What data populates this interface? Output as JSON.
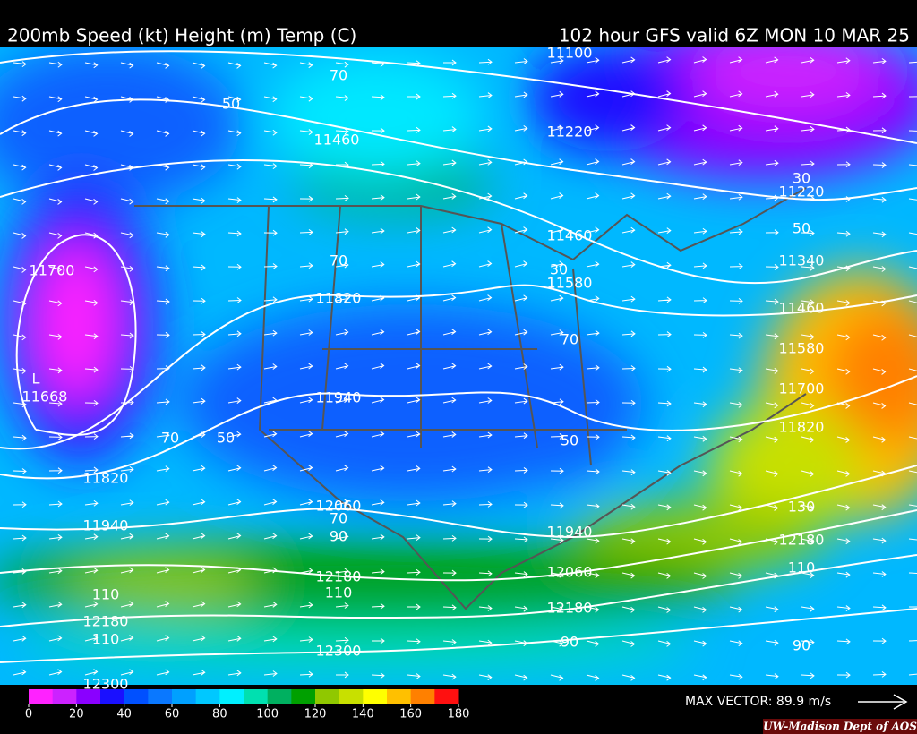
{
  "header": {
    "title_left": "200mb Speed (kt) Height (m) Temp (C)",
    "title_right": "102 hour GFS valid 6Z MON 10 MAR 25"
  },
  "low_marker": "L",
  "contour_labels": [
    11100,
    11460,
    11220,
    11220,
    11460,
    11340,
    11580,
    11460,
    11700,
    11820,
    11580,
    11700,
    11668,
    11940,
    11820,
    11820,
    12060,
    11940,
    11940,
    12180,
    12060,
    12180,
    12180,
    12180,
    12300,
    12300,
    50,
    70,
    70,
    70,
    30,
    50,
    30,
    50,
    70,
    50,
    70,
    90,
    110,
    110,
    110,
    90,
    130,
    110,
    90
  ],
  "colorbar": {
    "ticks": [
      0,
      20,
      40,
      60,
      80,
      100,
      120,
      140,
      160,
      180
    ],
    "colors": [
      "#ff22ff",
      "#cc22ff",
      "#8a00ff",
      "#1a10ff",
      "#0050ff",
      "#0a78ff",
      "#00a0ff",
      "#00c8ff",
      "#00f0ff",
      "#00e0b0",
      "#00b060",
      "#00a000",
      "#90c800",
      "#c8e000",
      "#ffff00",
      "#ffc000",
      "#ff8000",
      "#ff1010"
    ]
  },
  "max_vector": "MAX VECTOR:  89.9 m/s",
  "credit": "UW-Madison   Dept of AOS"
}
